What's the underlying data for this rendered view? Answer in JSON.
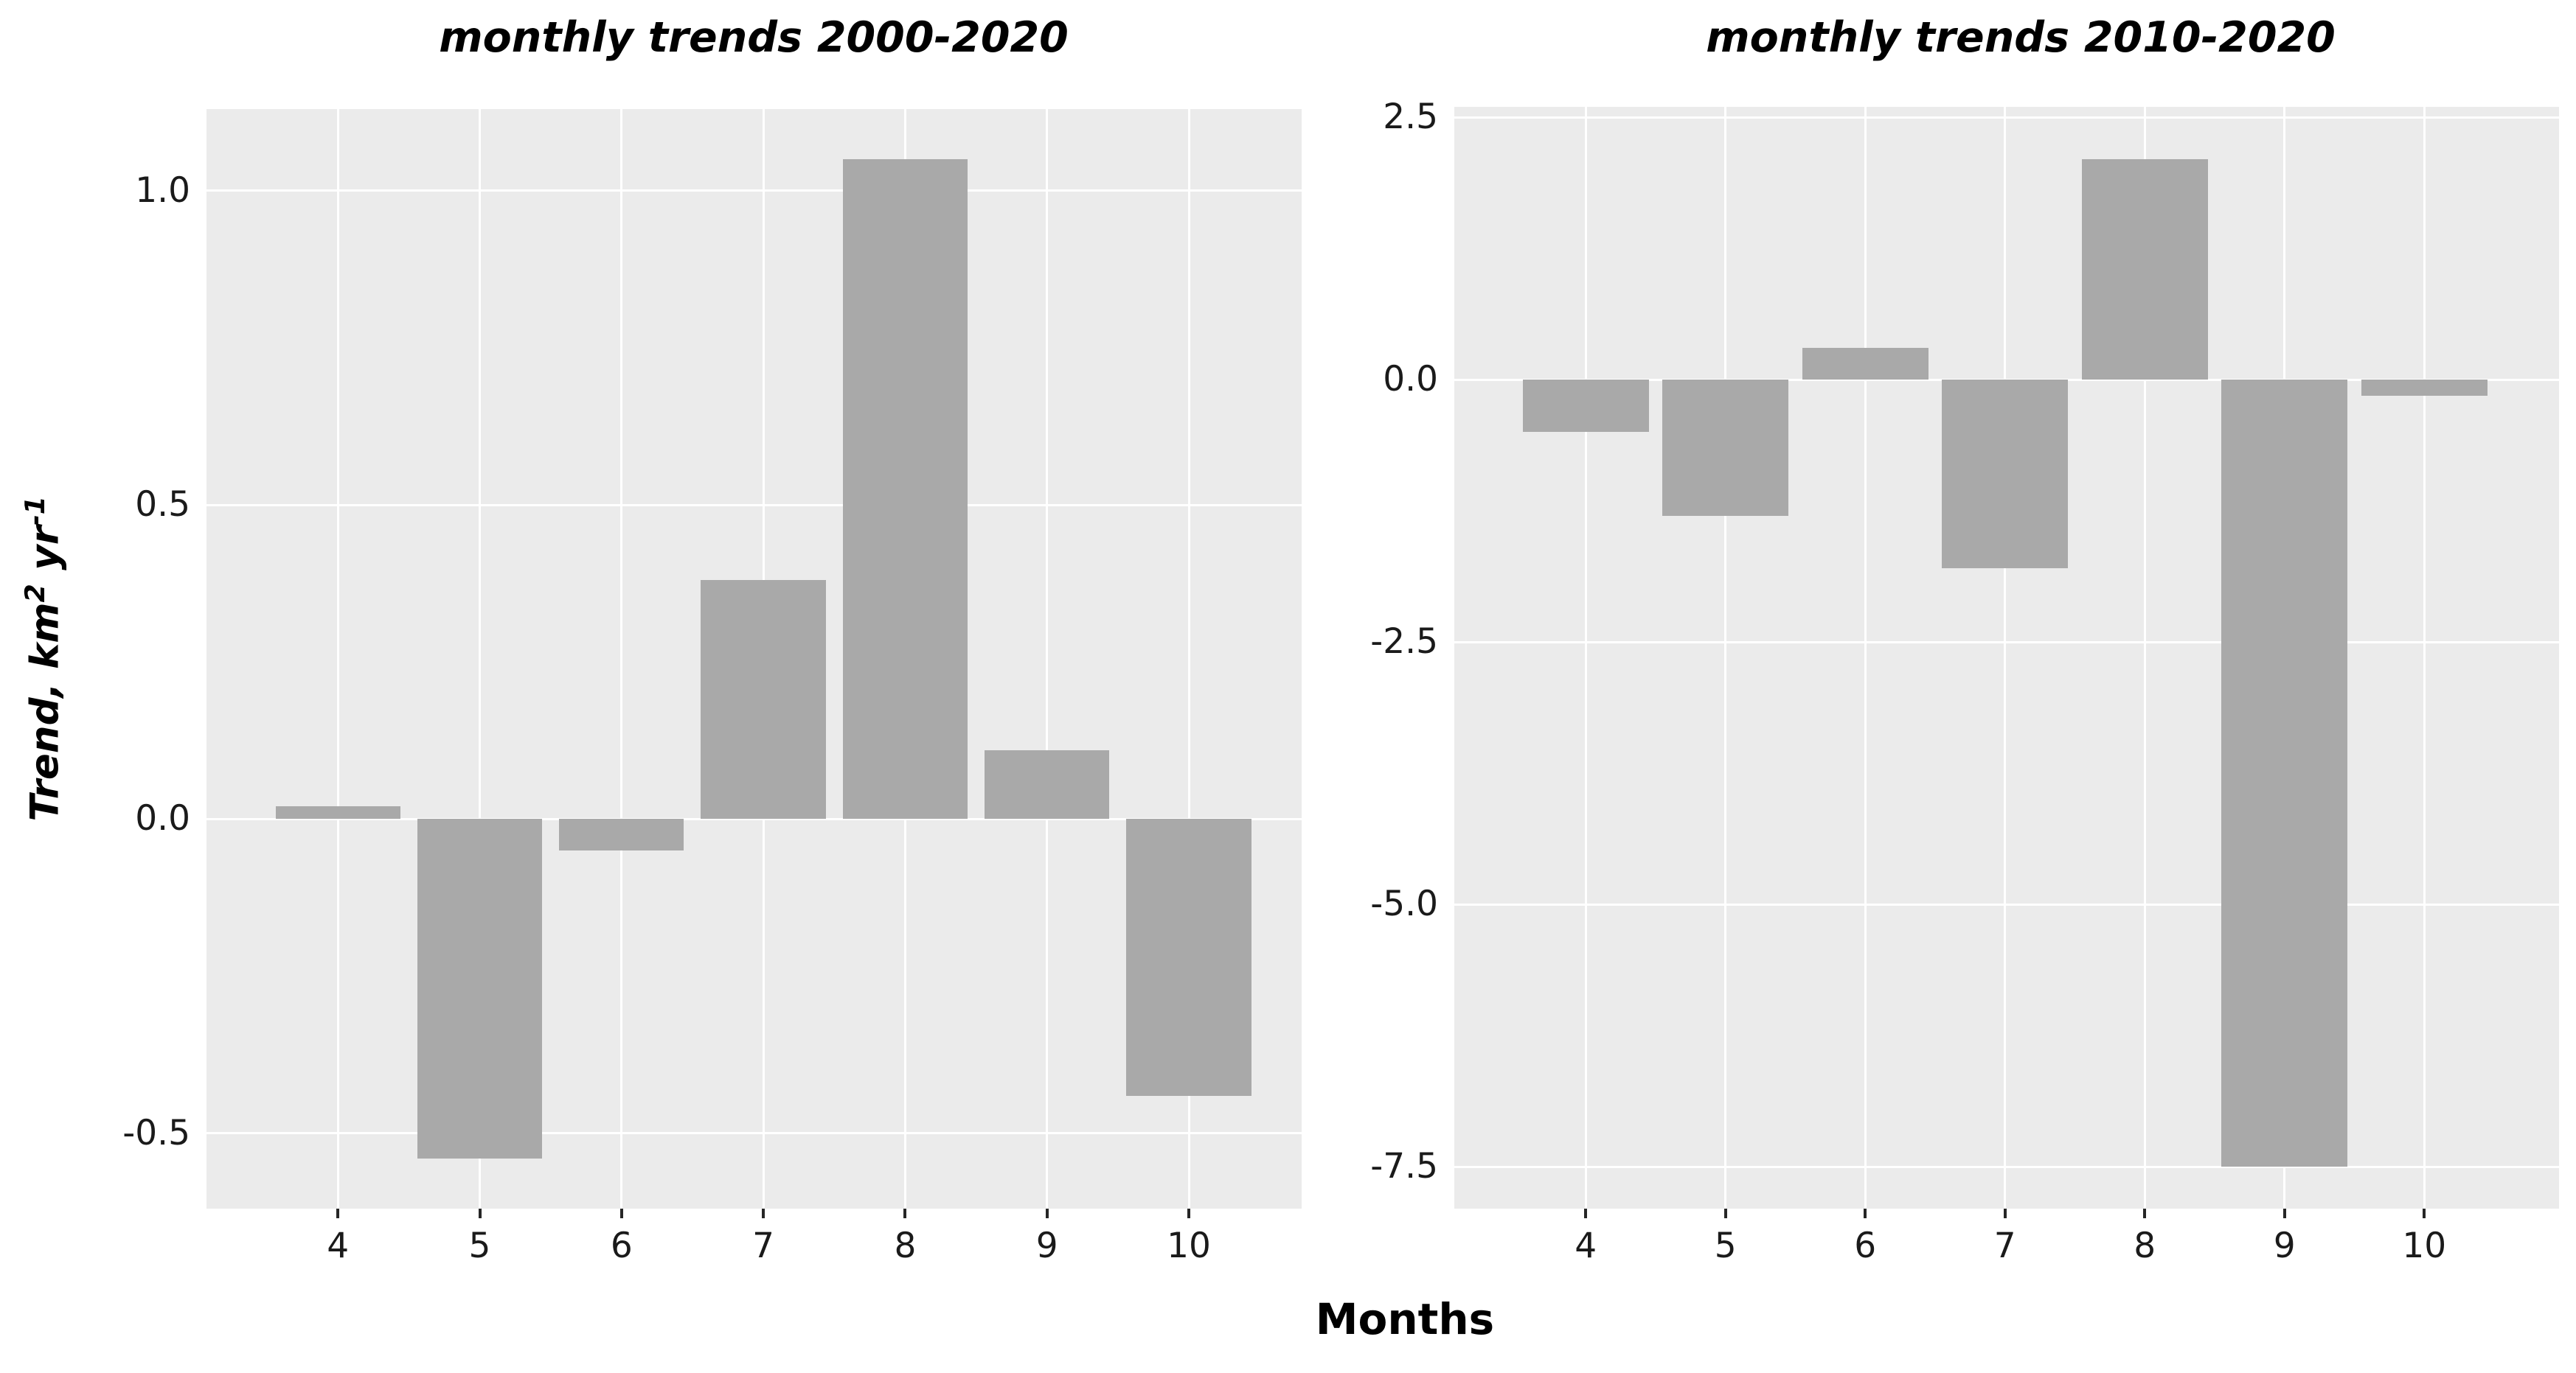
{
  "figure": {
    "shared_xlabel": "Months",
    "background": "#ffffff",
    "panel_background": "#ebebeb",
    "bar_color": "#a9a9a9",
    "gridline_color": "#ffffff",
    "tick_mark_color": "#262626",
    "text_color": "#000000"
  },
  "ylabel": {
    "plain": "Trend, km² yr⁻¹",
    "parts": [
      {
        "text": "Trend, km"
      },
      {
        "text": "2",
        "superscript": true
      },
      {
        "text": " yr"
      },
      {
        "text": "-1",
        "superscript": true
      }
    ]
  },
  "chart_data": [
    {
      "type": "bar",
      "title": "monthly trends 2000-2020",
      "xlabel": "Months",
      "ylabel": "Trend, km² yr⁻¹",
      "categories": [
        "4",
        "5",
        "6",
        "7",
        "8",
        "9",
        "10"
      ],
      "values": [
        0.02,
        -0.54,
        -0.05,
        0.38,
        1.05,
        0.11,
        -0.44
      ],
      "yticks": [
        1.0,
        0.5,
        0.0,
        -0.5
      ],
      "ylim": [
        -0.62,
        1.13
      ],
      "grid": true,
      "legend": false,
      "bar_color": "#a9a9a9"
    },
    {
      "type": "bar",
      "title": "monthly trends 2010-2020",
      "xlabel": "Months",
      "ylabel": "",
      "categories": [
        "4",
        "5",
        "6",
        "7",
        "8",
        "9",
        "10"
      ],
      "values": [
        -0.5,
        -1.3,
        0.3,
        -1.8,
        2.1,
        -7.5,
        -0.15
      ],
      "yticks": [
        2.5,
        0.0,
        -2.5,
        -5.0,
        -7.5
      ],
      "ylim": [
        -7.9,
        2.6
      ],
      "grid": true,
      "legend": false,
      "bar_color": "#a9a9a9"
    }
  ]
}
